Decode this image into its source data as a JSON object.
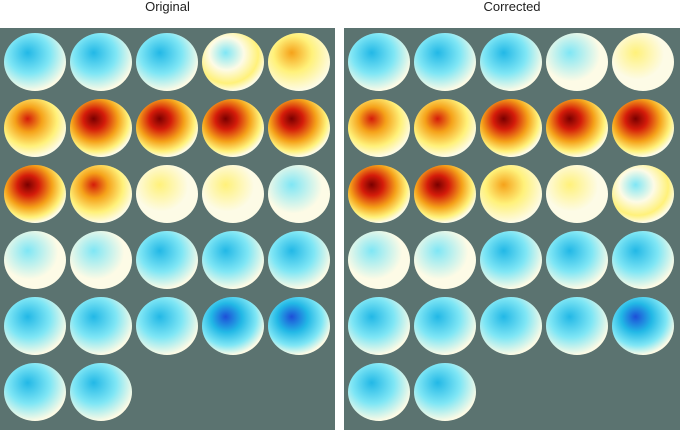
{
  "panels": [
    {
      "id": "original",
      "title": "Original",
      "maps": [
        {
          "polarity": "neg",
          "intensity": 0.55
        },
        {
          "polarity": "neg",
          "intensity": 0.75
        },
        {
          "polarity": "neg",
          "intensity": 0.5
        },
        {
          "polarity": "mixed",
          "intensity": 0.25
        },
        {
          "polarity": "pos",
          "intensity": 0.4
        },
        {
          "polarity": "pos",
          "intensity": 0.7
        },
        {
          "polarity": "pos",
          "intensity": 0.85
        },
        {
          "polarity": "pos",
          "intensity": 0.9
        },
        {
          "polarity": "pos",
          "intensity": 0.95
        },
        {
          "polarity": "pos",
          "intensity": 1.0
        },
        {
          "polarity": "pos",
          "intensity": 1.0
        },
        {
          "polarity": "pos",
          "intensity": 0.65
        },
        {
          "polarity": "pos",
          "intensity": 0.25
        },
        {
          "polarity": "pos",
          "intensity": 0.12
        },
        {
          "polarity": "neg",
          "intensity": 0.18
        },
        {
          "polarity": "neg",
          "intensity": 0.35
        },
        {
          "polarity": "neg",
          "intensity": 0.4
        },
        {
          "polarity": "neg",
          "intensity": 0.5
        },
        {
          "polarity": "neg",
          "intensity": 0.5
        },
        {
          "polarity": "neg",
          "intensity": 0.55
        },
        {
          "polarity": "neg",
          "intensity": 0.5
        },
        {
          "polarity": "neg",
          "intensity": 0.55
        },
        {
          "polarity": "neg",
          "intensity": 0.65
        },
        {
          "polarity": "neg",
          "intensity": 0.85
        },
        {
          "polarity": "neg",
          "intensity": 0.9
        },
        {
          "polarity": "neg",
          "intensity": 0.6
        },
        {
          "polarity": "neg",
          "intensity": 0.6
        }
      ]
    },
    {
      "id": "corrected",
      "title": "Corrected",
      "maps": [
        {
          "polarity": "neg",
          "intensity": 0.55
        },
        {
          "polarity": "neg",
          "intensity": 0.65
        },
        {
          "polarity": "neg",
          "intensity": 0.55
        },
        {
          "polarity": "neg",
          "intensity": 0.35
        },
        {
          "polarity": "pos",
          "intensity": 0.25
        },
        {
          "polarity": "pos",
          "intensity": 0.55
        },
        {
          "polarity": "pos",
          "intensity": 0.75
        },
        {
          "polarity": "pos",
          "intensity": 0.85
        },
        {
          "polarity": "pos",
          "intensity": 0.9
        },
        {
          "polarity": "pos",
          "intensity": 0.95
        },
        {
          "polarity": "pos",
          "intensity": 1.0
        },
        {
          "polarity": "pos",
          "intensity": 0.9
        },
        {
          "polarity": "pos",
          "intensity": 0.4
        },
        {
          "polarity": "pos",
          "intensity": 0.2
        },
        {
          "polarity": "mixed",
          "intensity": 0.1
        },
        {
          "polarity": "neg",
          "intensity": 0.4
        },
        {
          "polarity": "neg",
          "intensity": 0.45
        },
        {
          "polarity": "neg",
          "intensity": 0.5
        },
        {
          "polarity": "neg",
          "intensity": 0.55
        },
        {
          "polarity": "neg",
          "intensity": 0.55
        },
        {
          "polarity": "neg",
          "intensity": 0.55
        },
        {
          "polarity": "neg",
          "intensity": 0.5
        },
        {
          "polarity": "neg",
          "intensity": 0.6
        },
        {
          "polarity": "neg",
          "intensity": 0.75
        },
        {
          "polarity": "neg",
          "intensity": 0.85
        },
        {
          "polarity": "neg",
          "intensity": 0.75
        },
        {
          "polarity": "neg",
          "intensity": 0.55
        }
      ]
    }
  ],
  "colors": {
    "background": "#5b7370",
    "scalp_base": "#fdfbe6",
    "neg_light": "#7fe6f5",
    "neg_mid": "#22b8e6",
    "neg_strong": "#1d4fd8",
    "pos_light": "#fff17a",
    "pos_mid": "#f5a21a",
    "pos_strong": "#d41c0a",
    "pos_core": "#7a0000"
  }
}
